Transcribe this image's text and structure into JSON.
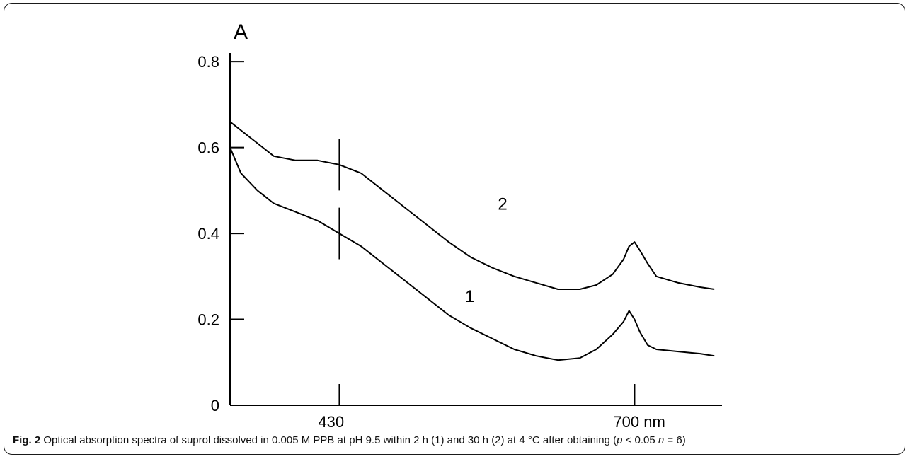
{
  "chart_data": {
    "type": "line",
    "xlabel": "",
    "ylabel": "A",
    "x_unit": "nm",
    "x_marked_ticks": [
      430,
      700
    ],
    "x_tick_labels": [
      "430",
      "700 nm"
    ],
    "xlim": [
      330,
      780
    ],
    "y_ticks": [
      0,
      0.2,
      0.4,
      0.6,
      0.8
    ],
    "y_tick_labels": [
      "0",
      "0.2",
      "0.4",
      "0.6",
      "0.8"
    ],
    "ylim": [
      0,
      0.82
    ],
    "grid": false,
    "legend": "none",
    "series": [
      {
        "name": "1",
        "x": [
          330,
          340,
          355,
          370,
          390,
          410,
          430,
          450,
          470,
          490,
          510,
          530,
          550,
          570,
          590,
          610,
          630,
          650,
          665,
          680,
          690,
          695,
          700,
          705,
          712,
          720,
          740,
          760,
          773
        ],
        "y": [
          0.6,
          0.54,
          0.5,
          0.47,
          0.45,
          0.43,
          0.4,
          0.37,
          0.33,
          0.29,
          0.25,
          0.21,
          0.18,
          0.155,
          0.13,
          0.115,
          0.105,
          0.11,
          0.13,
          0.165,
          0.195,
          0.22,
          0.2,
          0.17,
          0.14,
          0.13,
          0.125,
          0.12,
          0.115
        ]
      },
      {
        "name": "2",
        "x": [
          330,
          350,
          370,
          390,
          410,
          430,
          450,
          470,
          490,
          510,
          530,
          550,
          570,
          590,
          610,
          630,
          650,
          665,
          680,
          690,
          695,
          700,
          705,
          712,
          720,
          740,
          760,
          773
        ],
        "y": [
          0.66,
          0.62,
          0.58,
          0.57,
          0.57,
          0.56,
          0.54,
          0.5,
          0.46,
          0.42,
          0.38,
          0.345,
          0.32,
          0.3,
          0.285,
          0.27,
          0.27,
          0.28,
          0.305,
          0.34,
          0.37,
          0.38,
          0.36,
          0.33,
          0.3,
          0.285,
          0.275,
          0.27
        ]
      }
    ],
    "annotations": [
      {
        "text": "1",
        "x": 545,
        "y": 0.24
      },
      {
        "text": "2",
        "x": 575,
        "y": 0.455
      }
    ],
    "marker_lines": [
      {
        "x": 430,
        "series": "1",
        "half_height": 0.06
      },
      {
        "x": 430,
        "series": "2",
        "half_height": 0.06
      }
    ]
  },
  "caption": {
    "label": "Fig. 2",
    "text_before_p": " Optical absorption spectra of suprol dissolved in 0.005 M PPB at pH 9.5 within 2 h (1) and 30 h (2) at 4 °C after obtaining (",
    "p_symbol": "p",
    "text_mid": " < 0.05 ",
    "n_symbol": "n",
    "text_after_n": " = 6)"
  }
}
